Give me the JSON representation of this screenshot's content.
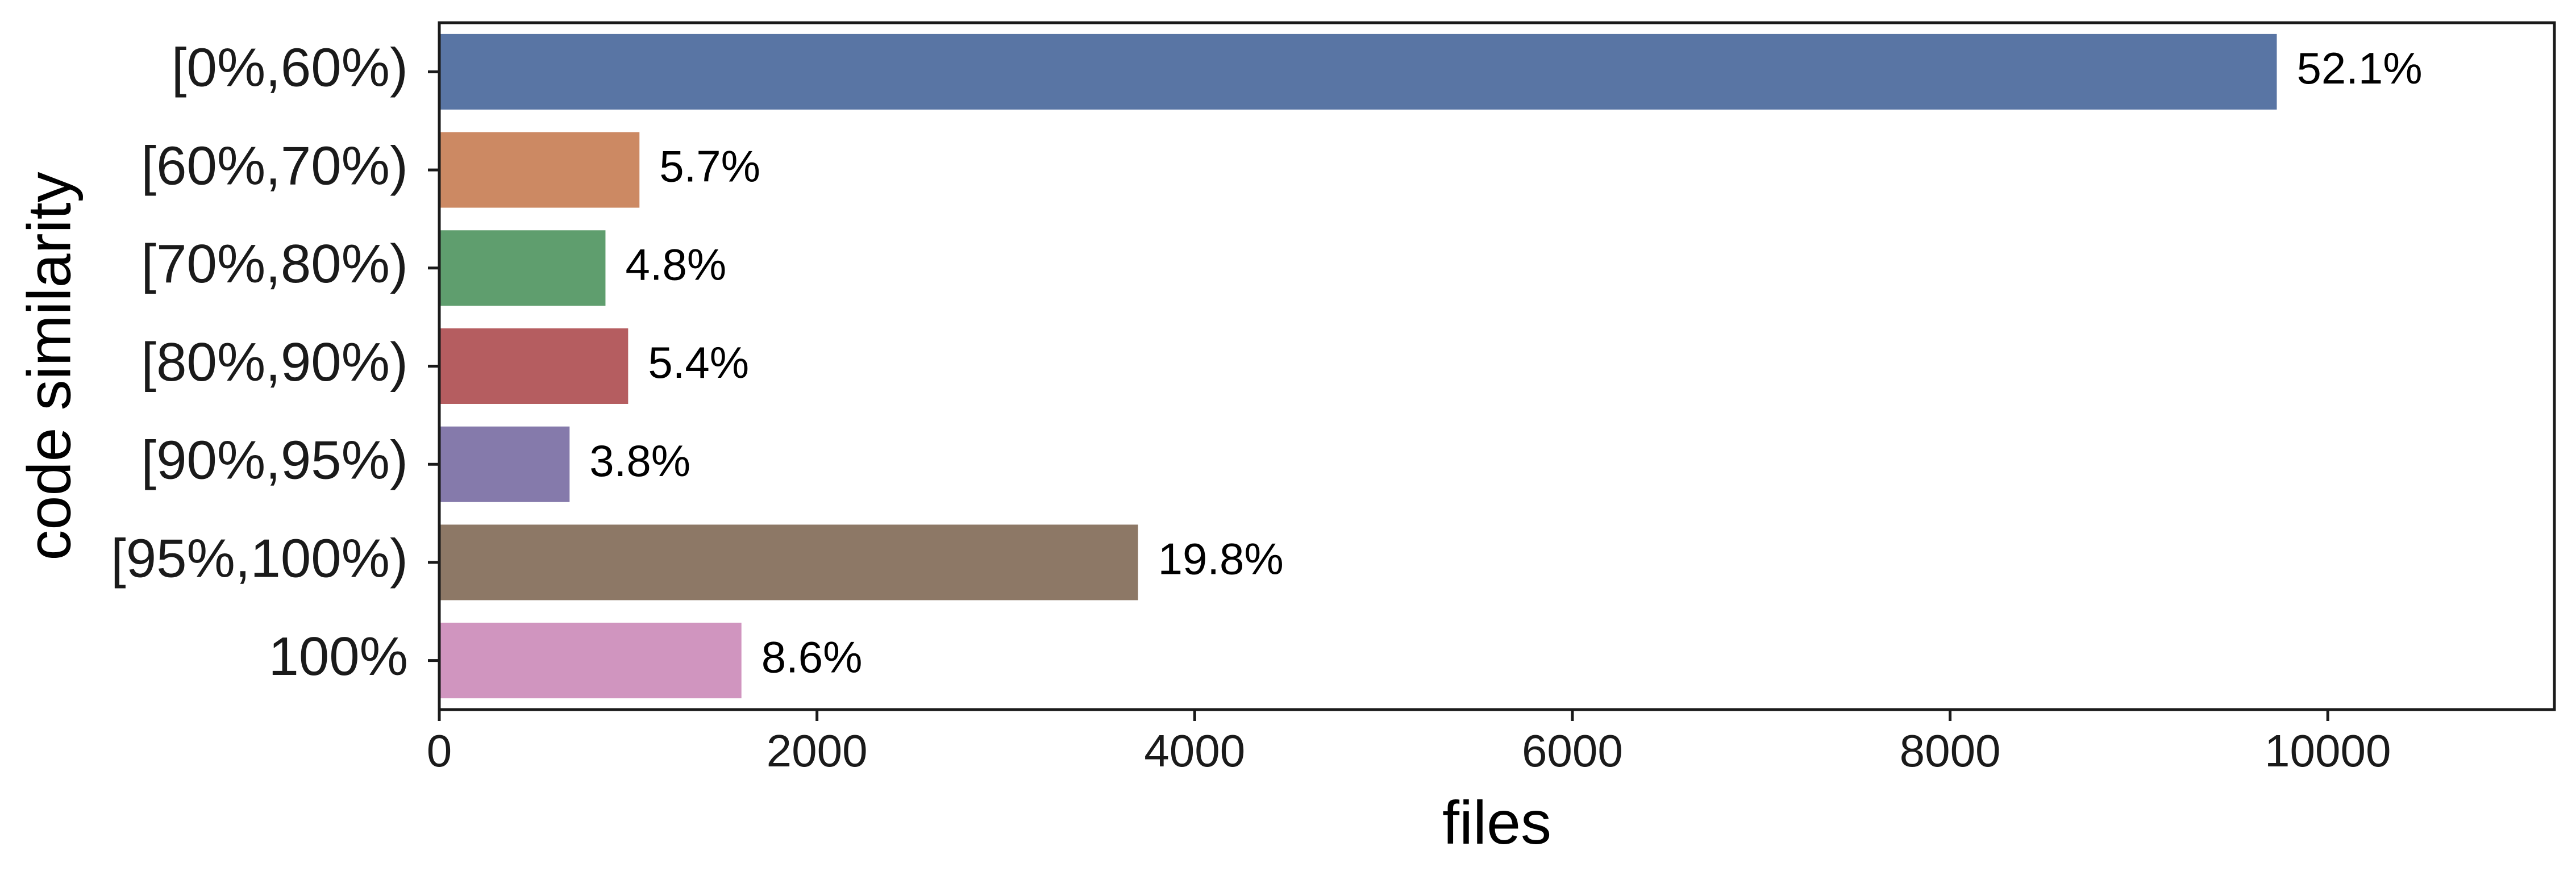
{
  "chart_data": {
    "type": "bar",
    "orientation": "horizontal",
    "title": "",
    "xlabel": "files",
    "ylabel": "code similarity",
    "categories": [
      "[0%,60%)",
      "[60%,70%)",
      "[70%,80%)",
      "[80%,90%)",
      "[90%,95%)",
      "[95%,100%)",
      "100%"
    ],
    "values": [
      9730,
      1060,
      880,
      1000,
      690,
      3700,
      1600
    ],
    "labels": [
      "52.1%",
      "5.7%",
      "4.8%",
      "5.4%",
      "3.8%",
      "19.8%",
      "8.6%"
    ],
    "colors": [
      "#5975a4",
      "#cc8963",
      "#5f9e6e",
      "#b55d60",
      "#857aab",
      "#8d7866",
      "#d095bf"
    ],
    "xlim": [
      0,
      11200
    ],
    "xticks": [
      0,
      2000,
      4000,
      6000,
      8000,
      10000
    ],
    "grid": false,
    "legend": "none"
  }
}
